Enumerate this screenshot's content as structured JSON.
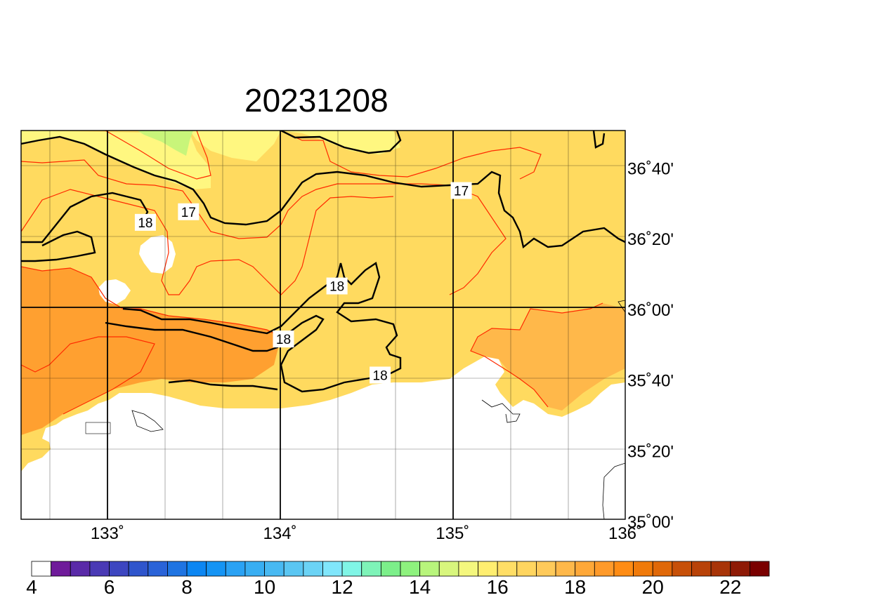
{
  "title": "20231208",
  "map": {
    "lon_range": [
      132.5,
      136.0
    ],
    "lat_range": [
      35.0,
      36.833
    ],
    "x_ticks": [
      {
        "lon": 133,
        "label": "133˚"
      },
      {
        "lon": 134,
        "label": "134˚"
      },
      {
        "lon": 135,
        "label": "135˚"
      },
      {
        "lon": 136,
        "label": "136˚"
      }
    ],
    "y_ticks": [
      {
        "lat": 36.6667,
        "label": "36˚40'"
      },
      {
        "lat": 36.3333,
        "label": "36˚20'"
      },
      {
        "lat": 36.0,
        "label": "36˚00'"
      },
      {
        "lat": 35.6667,
        "label": "35˚40'"
      },
      {
        "lat": 35.3333,
        "label": "35˚20'"
      },
      {
        "lat": 35.0,
        "label": "35˚00'"
      }
    ],
    "contour_labels": [
      {
        "text": "17",
        "lon": 133.47,
        "lat": 36.45
      },
      {
        "text": "17",
        "lon": 135.05,
        "lat": 36.55
      },
      {
        "text": "18",
        "lon": 133.22,
        "lat": 36.4
      },
      {
        "text": "18",
        "lon": 134.33,
        "lat": 36.1
      },
      {
        "text": "18",
        "lon": 134.02,
        "lat": 35.85
      },
      {
        "text": "18",
        "lon": 134.58,
        "lat": 35.68
      }
    ],
    "colors": {
      "land": "#ffffff",
      "c14_15": "#c8f57a",
      "c15_16": "#fff780",
      "c16_17": "#ffda5f",
      "c17_18": "#ffb84a",
      "c18_19": "#ffa030",
      "contour_minor": "#ff2a00",
      "contour_major": "#000000"
    }
  },
  "colorbar": {
    "ticks": [
      {
        "value": 4,
        "label": "4"
      },
      {
        "value": 6,
        "label": "6"
      },
      {
        "value": 8,
        "label": "8"
      },
      {
        "value": 10,
        "label": "10"
      },
      {
        "value": 12,
        "label": "12"
      },
      {
        "value": 14,
        "label": "14"
      },
      {
        "value": 16,
        "label": "16"
      },
      {
        "value": 18,
        "label": "18"
      },
      {
        "value": 20,
        "label": "20"
      },
      {
        "value": 22,
        "label": "22"
      }
    ],
    "min": 4,
    "step": 0.5,
    "colors": [
      "#ffffff",
      "#6f1b9a",
      "#5a2aa8",
      "#4a3ab5",
      "#3d46c0",
      "#2f55cc",
      "#2a63d8",
      "#1f74e2",
      "#0c86f2",
      "#1594f4",
      "#2aa2f4",
      "#38aef2",
      "#48b9f2",
      "#5ac6f2",
      "#6bd3f5",
      "#80e6fb",
      "#80f5e6",
      "#7ef3b8",
      "#7cef8a",
      "#8ef27e",
      "#b8f57c",
      "#d8f67d",
      "#f4f77e",
      "#ffee70",
      "#ffde66",
      "#ffd55f",
      "#ffca5a",
      "#ffb84a",
      "#ffa838",
      "#ff9a2a",
      "#ff8c14",
      "#f07a0a",
      "#e06808",
      "#c75008",
      "#b84208",
      "#a83408",
      "#8e1a06",
      "#7a0000"
    ]
  }
}
